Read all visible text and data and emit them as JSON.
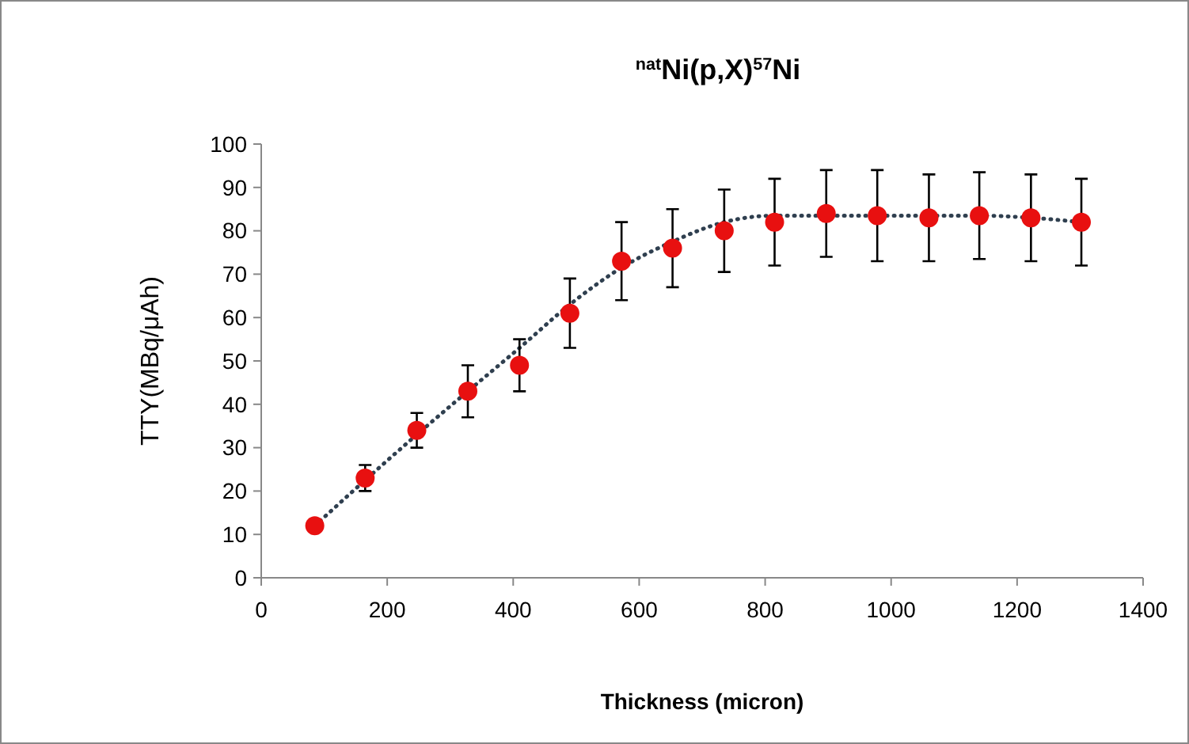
{
  "chart_data": {
    "type": "scatter",
    "title": "$^{nat}$Ni(p,X)$^{57}$Ni",
    "xlabel": "Thickness (micron)",
    "ylabel": "TTY(MBq/μAh)",
    "x": [
      85,
      165,
      247,
      328,
      410,
      490,
      572,
      653,
      735,
      815,
      897,
      978,
      1060,
      1140,
      1222,
      1302
    ],
    "series": [
      {
        "color": "#e81010",
        "values": [
          12,
          23,
          34,
          43,
          49,
          61,
          73,
          76,
          80,
          82,
          84,
          83.5,
          83,
          83.5,
          83,
          82
        ],
        "errors": [
          null,
          3,
          4,
          6,
          6,
          8,
          9,
          9,
          9.5,
          10,
          10,
          10.5,
          10,
          10,
          10,
          10
        ]
      },
      {
        "type": "line",
        "color": "#2f3f4f",
        "line_style": "dotted",
        "marker": "none",
        "x": [
          85,
          165,
          247,
          328,
          410,
          490,
          572,
          653,
          735,
          815,
          897,
          978,
          1060,
          1140,
          1222,
          1302
        ],
        "values": [
          12,
          22.5,
          33,
          43,
          53,
          63,
          71.5,
          77.5,
          82,
          83.5,
          83.5,
          83.5,
          83.5,
          83.5,
          83,
          82
        ]
      }
    ],
    "xlim": [
      0,
      1400
    ],
    "xticks": [
      0,
      200,
      400,
      600,
      800,
      1000,
      1200,
      1400
    ],
    "ylim": [
      0,
      100
    ],
    "yticks": [
      0,
      10,
      20,
      30,
      40,
      50,
      60,
      70,
      80,
      90,
      100
    ],
    "grid": false,
    "marker": "circle"
  }
}
